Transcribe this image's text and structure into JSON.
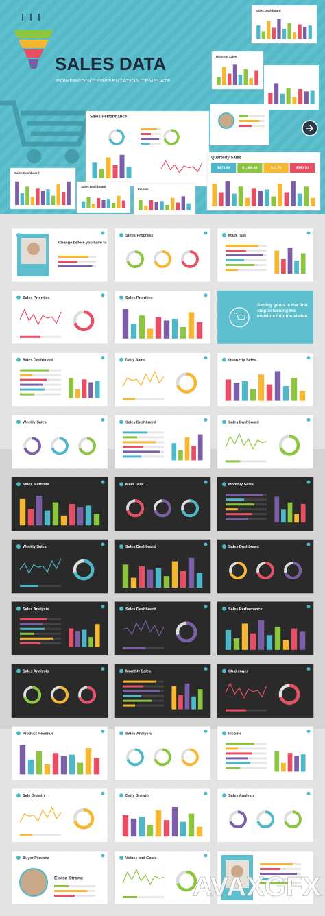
{
  "header": {
    "title": "SALES DATA",
    "subtitle": "POWERPOINT PRESENTATION TEMPLATE"
  },
  "preview_slides": [
    {
      "title": "Sales Dashboard"
    },
    {
      "title": "Monthly Sales"
    },
    {
      "title": "Sales Performance"
    },
    {
      "title": "Quarterly Sales",
      "values": [
        "$473.00",
        "$1,490.40",
        "$11.70",
        "$290.70"
      ]
    },
    {
      "title": "Sales Dashboard"
    },
    {
      "title": "Sales Dashboard"
    },
    {
      "title": "Income"
    }
  ],
  "slides": [
    {
      "title": "Change before you have to"
    },
    {
      "title": "Steps Progress"
    },
    {
      "title": "Main Task"
    },
    {
      "title": "Sales Priorities"
    },
    {
      "title": "Sales Priorities"
    },
    {
      "text": "Setting goals is the first step in turning the invisible into the visible."
    },
    {
      "title": "Sales Dashboard"
    },
    {
      "title": "Daily Sales"
    },
    {
      "title": "Quarterly Sales"
    },
    {
      "title": "Weekly Sales"
    },
    {
      "title": "Sales Dashboard"
    },
    {
      "title": "Sales Dashboard"
    },
    {
      "title": "Sales Methods"
    },
    {
      "title": "Main Task"
    },
    {
      "title": "Monthly Sales"
    },
    {
      "title": "Weekly Sales"
    },
    {
      "title": "Sales Dashboard"
    },
    {
      "title": "Sales Dashboard"
    },
    {
      "title": "Sales Analysis"
    },
    {
      "title": "Sales Dashboard"
    },
    {
      "title": "Sales Performance"
    },
    {
      "title": "Sales Analysis"
    },
    {
      "title": "Monthly Sales"
    },
    {
      "title": "Challenges"
    },
    {
      "title": "Product Revenue"
    },
    {
      "title": "Sales Analysis"
    },
    {
      "title": "Income"
    },
    {
      "title": "Sale Growth"
    },
    {
      "title": "Daily Growth"
    },
    {
      "title": "Sales Analysis"
    },
    {
      "title": "Buyer Persona",
      "name": "Eloisa Strong"
    },
    {
      "title": "Values and Goals"
    }
  ],
  "watermark": "AVAXGFX"
}
